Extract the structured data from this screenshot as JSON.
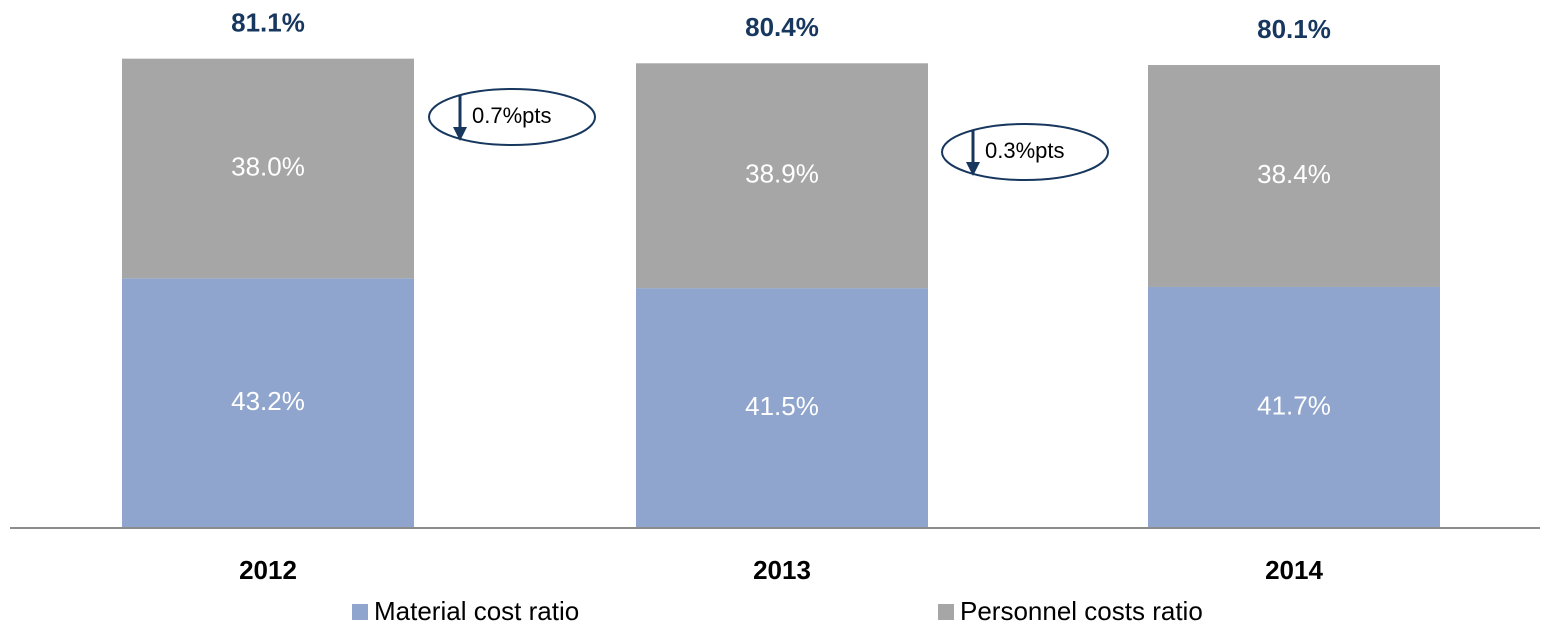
{
  "chart_data": {
    "type": "stacked-bar",
    "categories": [
      "2012",
      "2013",
      "2014"
    ],
    "series": [
      {
        "name": "Material cost ratio",
        "color": "#8fa5cd",
        "values": [
          43.2,
          41.5,
          41.7
        ],
        "value_labels": [
          "43.2%",
          "41.5%",
          "41.7%"
        ]
      },
      {
        "name": "Personnel costs ratio",
        "color": "#a6a6a6",
        "values": [
          38.0,
          38.9,
          38.4
        ],
        "value_labels": [
          "38.0%",
          "38.9%",
          "38.4%"
        ]
      }
    ],
    "totals": [
      81.1,
      80.4,
      80.1
    ],
    "total_labels": [
      "81.1%",
      "80.4%",
      "80.1%"
    ],
    "annotations": [
      "0.7%pts",
      "0.3%pts"
    ],
    "legend": "bottom"
  }
}
